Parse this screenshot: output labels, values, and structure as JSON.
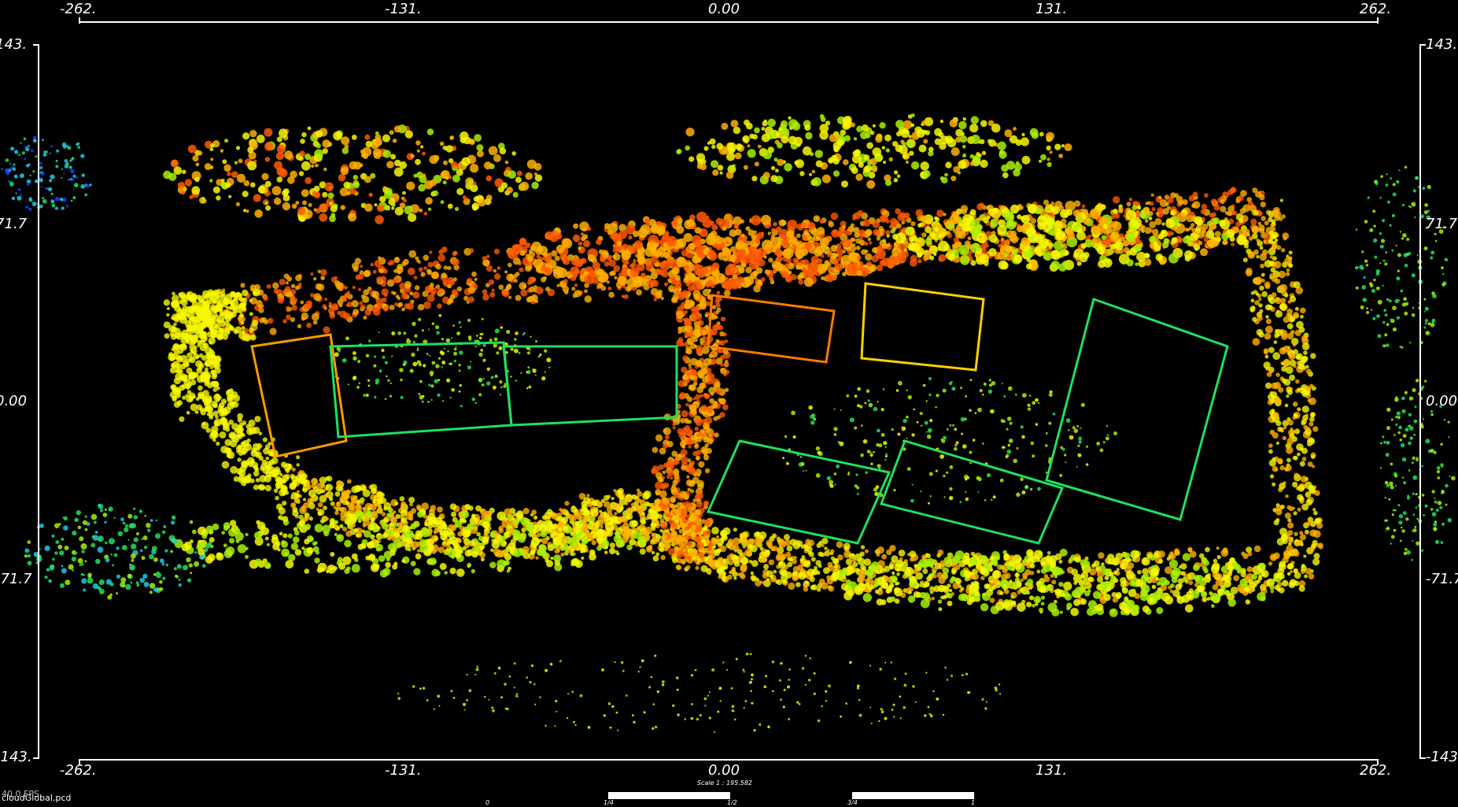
{
  "viewer": {
    "file_name": "cloudGlobal.pcd",
    "fps": "40.0 FPS",
    "scale_text": "Scale 1 : 195.582",
    "scale_fractions": [
      "0",
      "1/4",
      "1/2",
      "3/4",
      "1"
    ]
  },
  "axes": {
    "x_ticks": [
      "-262.",
      "-131.",
      "0.00",
      "131.",
      "262."
    ],
    "y_ticks": [
      "143.",
      "71.7",
      "0.00",
      "-71.7",
      "-143."
    ]
  },
  "colors": {
    "background": "#000000",
    "axis": "#ffffff",
    "height_colormap": [
      "#1a40ff",
      "#20c8e0",
      "#20e060",
      "#a8f000",
      "#f8f800",
      "#ffb000",
      "#ff5a00"
    ]
  }
}
